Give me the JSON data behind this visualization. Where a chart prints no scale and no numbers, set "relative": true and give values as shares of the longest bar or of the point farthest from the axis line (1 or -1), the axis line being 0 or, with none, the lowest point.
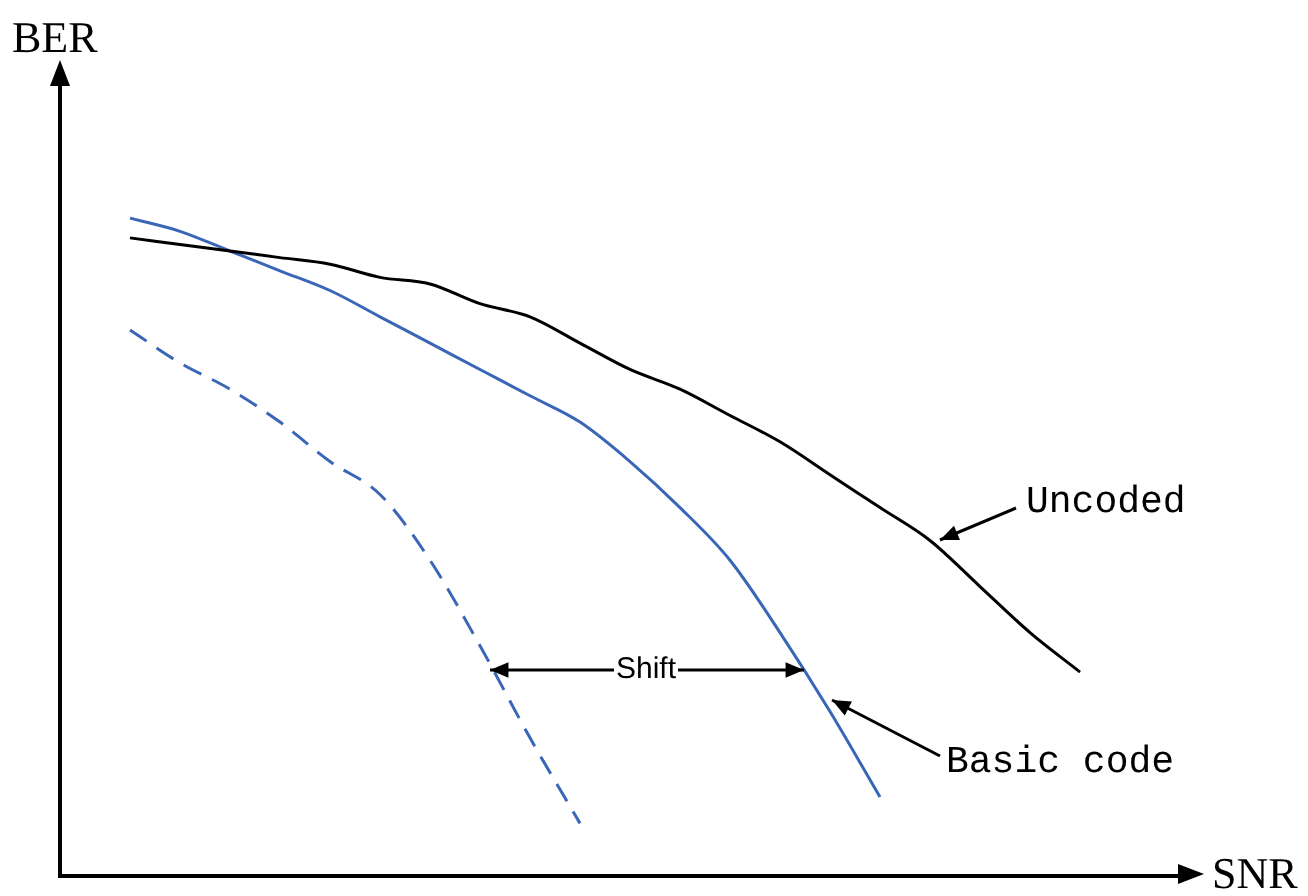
{
  "chart_data": {
    "type": "line",
    "relative": true,
    "xlabel": "SNR",
    "ylabel": "BER",
    "legend": "right",
    "grid": false,
    "marker": "none",
    "categories": [
      null,
      null,
      null,
      null,
      null,
      null,
      null,
      null,
      null,
      null,
      null,
      null,
      null,
      null,
      null,
      null,
      null,
      null,
      null,
      null
    ],
    "series": [
      {
        "name": "Uncoded",
        "color": "#000000",
        "line_style": "solid",
        "values": [
          0.97,
          0.96,
          0.95,
          0.94,
          0.93,
          0.91,
          0.9,
          0.87,
          0.85,
          0.81,
          0.77,
          0.74,
          0.7,
          0.66,
          0.61,
          0.56,
          0.51,
          0.44,
          0.37,
          0.31
        ]
      },
      {
        "name": "Basic code",
        "color": "#3a66b8",
        "line_style": "solid",
        "values": [
          1,
          0.98,
          0.95,
          0.92,
          0.89,
          0.85,
          0.81,
          0.77,
          0.73,
          0.69,
          0.63,
          0.56,
          0.48,
          0.37,
          0.25,
          0.12,
          null,
          null,
          null,
          null
        ]
      },
      {
        "color": "#3a66b8",
        "line_style": "dashed",
        "values": [
          0.83,
          0.78,
          0.74,
          0.69,
          0.63,
          0.58,
          0.48,
          0.35,
          0.21,
          0.08,
          null,
          null,
          null,
          null,
          null,
          null,
          null,
          null,
          null,
          null
        ]
      }
    ],
    "annotations": [
      "Shift"
    ]
  }
}
